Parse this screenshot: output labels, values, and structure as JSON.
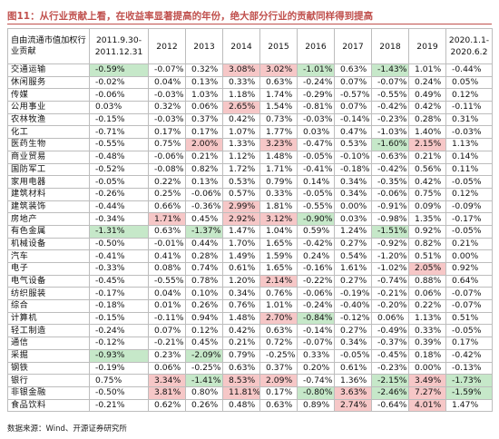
{
  "title": "图11：从行业贡献上看，在收益率显著提高的年份，绝大部分行业的贡献同样得到提高",
  "header": {
    "corner": "自由流通市值加权行业贡献",
    "columns": [
      "2011.9.30-\n2011.12.31",
      "2012",
      "2013",
      "2014",
      "2015",
      "2016",
      "2017",
      "2018",
      "2019",
      "2020.1.1-\n2020.6.2"
    ]
  },
  "colors": {
    "green": "#c6e8c9",
    "red": "#f6c7c7",
    "title": "#c0504d"
  },
  "rows": [
    {
      "name": "交通运输",
      "values": [
        "-0.59%",
        "-0.07%",
        "0.32%",
        "3.08%",
        "3.02%",
        "-1.01%",
        "0.63%",
        "-1.43%",
        "1.01%",
        "-0.44%"
      ],
      "hl": [
        "g",
        "",
        "",
        "r",
        "r",
        "g",
        "",
        "g",
        "",
        ""
      ]
    },
    {
      "name": "休闲服务",
      "values": [
        "-0.02%",
        "0.04%",
        "0.13%",
        "0.33%",
        "0.63%",
        "-0.24%",
        "0.07%",
        "-0.07%",
        "0.24%",
        "0.05%"
      ],
      "hl": [
        "",
        "",
        "",
        "",
        "",
        "",
        "",
        "",
        "",
        ""
      ]
    },
    {
      "name": "传媒",
      "values": [
        "-0.06%",
        "-0.03%",
        "1.03%",
        "1.18%",
        "1.74%",
        "-0.29%",
        "-0.57%",
        "-0.55%",
        "0.49%",
        "0.12%"
      ],
      "hl": [
        "",
        "",
        "",
        "",
        "",
        "",
        "",
        "",
        "",
        ""
      ]
    },
    {
      "name": "公用事业",
      "values": [
        "0.03%",
        "0.32%",
        "0.06%",
        "2.65%",
        "1.54%",
        "-0.81%",
        "0.07%",
        "-0.42%",
        "0.42%",
        "-0.11%"
      ],
      "hl": [
        "",
        "",
        "",
        "r",
        "",
        "",
        "",
        "",
        "",
        ""
      ]
    },
    {
      "name": "农林牧渔",
      "values": [
        "-0.15%",
        "-0.03%",
        "0.37%",
        "0.42%",
        "0.73%",
        "-0.03%",
        "-0.14%",
        "-0.23%",
        "0.28%",
        "0.31%"
      ],
      "hl": [
        "",
        "",
        "",
        "",
        "",
        "",
        "",
        "",
        "",
        ""
      ]
    },
    {
      "name": "化工",
      "values": [
        "-0.71%",
        "0.17%",
        "0.17%",
        "1.07%",
        "1.77%",
        "0.03%",
        "0.47%",
        "-1.03%",
        "1.40%",
        "-0.03%"
      ],
      "hl": [
        "",
        "",
        "",
        "",
        "",
        "",
        "",
        "",
        "",
        ""
      ]
    },
    {
      "name": "医药生物",
      "values": [
        "-0.55%",
        "0.75%",
        "2.00%",
        "1.33%",
        "3.23%",
        "-0.47%",
        "0.53%",
        "-1.60%",
        "2.15%",
        "1.13%"
      ],
      "hl": [
        "",
        "",
        "r",
        "",
        "r",
        "",
        "",
        "g",
        "r",
        ""
      ]
    },
    {
      "name": "商业贸易",
      "values": [
        "-0.48%",
        "-0.06%",
        "0.21%",
        "1.12%",
        "1.48%",
        "-0.05%",
        "-0.10%",
        "-0.63%",
        "0.21%",
        "0.14%"
      ],
      "hl": [
        "",
        "",
        "",
        "",
        "",
        "",
        "",
        "",
        "",
        ""
      ]
    },
    {
      "name": "国防军工",
      "values": [
        "-0.52%",
        "-0.08%",
        "0.82%",
        "1.72%",
        "1.71%",
        "-0.41%",
        "-0.18%",
        "-0.42%",
        "0.56%",
        "0.11%"
      ],
      "hl": [
        "",
        "",
        "",
        "",
        "",
        "",
        "",
        "",
        "",
        ""
      ]
    },
    {
      "name": "家用电器",
      "values": [
        "-0.05%",
        "0.22%",
        "0.13%",
        "0.53%",
        "0.79%",
        "0.14%",
        "0.34%",
        "-0.35%",
        "0.42%",
        "-0.05%"
      ],
      "hl": [
        "",
        "",
        "",
        "",
        "",
        "",
        "",
        "",
        "",
        ""
      ]
    },
    {
      "name": "建筑材料",
      "values": [
        "-0.26%",
        "0.25%",
        "-0.06%",
        "0.57%",
        "0.33%",
        "-0.05%",
        "0.34%",
        "-0.06%",
        "0.75%",
        "0.12%"
      ],
      "hl": [
        "",
        "",
        "",
        "",
        "",
        "",
        "",
        "",
        "",
        ""
      ]
    },
    {
      "name": "建筑装饰",
      "values": [
        "-0.44%",
        "0.66%",
        "-0.36%",
        "2.99%",
        "1.81%",
        "-0.55%",
        "0.00%",
        "-0.91%",
        "0.09%",
        "-0.09%"
      ],
      "hl": [
        "",
        "",
        "",
        "r",
        "",
        "",
        "",
        "",
        "",
        ""
      ]
    },
    {
      "name": "房地产",
      "values": [
        "-0.34%",
        "1.71%",
        "0.45%",
        "2.92%",
        "3.12%",
        "-0.90%",
        "0.03%",
        "-0.98%",
        "1.35%",
        "-0.17%"
      ],
      "hl": [
        "",
        "r",
        "",
        "r",
        "r",
        "g",
        "",
        "",
        "",
        ""
      ]
    },
    {
      "name": "有色金属",
      "values": [
        "-1.31%",
        "0.63%",
        "-1.37%",
        "1.47%",
        "1.04%",
        "0.59%",
        "1.24%",
        "-1.51%",
        "0.92%",
        "-0.05%"
      ],
      "hl": [
        "g",
        "",
        "g",
        "",
        "",
        "",
        "",
        "g",
        "",
        ""
      ]
    },
    {
      "name": "机械设备",
      "values": [
        "-0.50%",
        "-0.01%",
        "0.44%",
        "1.70%",
        "1.65%",
        "-0.42%",
        "0.27%",
        "-0.92%",
        "0.82%",
        "0.21%"
      ],
      "hl": [
        "",
        "",
        "",
        "",
        "",
        "",
        "",
        "",
        "",
        ""
      ]
    },
    {
      "name": "汽车",
      "values": [
        "-0.41%",
        "0.41%",
        "0.28%",
        "1.49%",
        "1.59%",
        "0.24%",
        "0.54%",
        "-1.20%",
        "0.51%",
        "0.00%"
      ],
      "hl": [
        "",
        "",
        "",
        "",
        "",
        "",
        "",
        "",
        "",
        ""
      ]
    },
    {
      "name": "电子",
      "values": [
        "-0.33%",
        "0.08%",
        "0.74%",
        "0.61%",
        "1.65%",
        "-0.16%",
        "1.61%",
        "-1.02%",
        "2.05%",
        "0.92%"
      ],
      "hl": [
        "",
        "",
        "",
        "",
        "",
        "",
        "",
        "",
        "r",
        ""
      ]
    },
    {
      "name": "电气设备",
      "values": [
        "-0.45%",
        "-0.55%",
        "0.78%",
        "1.20%",
        "2.14%",
        "-0.22%",
        "0.27%",
        "-0.74%",
        "0.88%",
        "0.64%"
      ],
      "hl": [
        "",
        "",
        "",
        "",
        "r",
        "",
        "",
        "",
        "",
        ""
      ]
    },
    {
      "name": "纺织服装",
      "values": [
        "-0.17%",
        "0.04%",
        "0.10%",
        "0.34%",
        "0.76%",
        "-0.06%",
        "-0.19%",
        "-0.21%",
        "0.06%",
        "-0.07%"
      ],
      "hl": [
        "",
        "",
        "",
        "",
        "",
        "",
        "",
        "",
        "",
        ""
      ]
    },
    {
      "name": "综合",
      "values": [
        "-0.18%",
        "0.01%",
        "0.26%",
        "0.76%",
        "1.01%",
        "-0.24%",
        "-0.40%",
        "-0.20%",
        "0.22%",
        "-0.07%"
      ],
      "hl": [
        "",
        "",
        "",
        "",
        "",
        "",
        "",
        "",
        "",
        ""
      ]
    },
    {
      "name": "计算机",
      "values": [
        "-0.15%",
        "-0.11%",
        "0.94%",
        "1.48%",
        "2.70%",
        "-0.84%",
        "-0.12%",
        "0.06%",
        "1.13%",
        "0.51%"
      ],
      "hl": [
        "",
        "",
        "",
        "",
        "r",
        "g",
        "",
        "",
        "",
        ""
      ]
    },
    {
      "name": "轻工制造",
      "values": [
        "-0.24%",
        "0.07%",
        "0.12%",
        "0.42%",
        "0.63%",
        "-0.14%",
        "0.27%",
        "-0.49%",
        "0.33%",
        "-0.05%"
      ],
      "hl": [
        "",
        "",
        "",
        "",
        "",
        "",
        "",
        "",
        "",
        ""
      ]
    },
    {
      "name": "通信",
      "values": [
        "-0.12%",
        "-0.21%",
        "0.45%",
        "0.21%",
        "0.72%",
        "-0.07%",
        "0.34%",
        "-0.37%",
        "0.39%",
        "0.17%"
      ],
      "hl": [
        "",
        "",
        "",
        "",
        "",
        "",
        "",
        "",
        "",
        ""
      ]
    },
    {
      "name": "采掘",
      "values": [
        "-0.93%",
        "0.23%",
        "-2.09%",
        "0.79%",
        "-0.25%",
        "0.33%",
        "-0.05%",
        "-0.45%",
        "0.18%",
        "-0.42%"
      ],
      "hl": [
        "g",
        "",
        "g",
        "",
        "",
        "",
        "",
        "",
        "",
        ""
      ]
    },
    {
      "name": "钢铁",
      "values": [
        "-0.19%",
        "0.06%",
        "-0.25%",
        "0.63%",
        "0.37%",
        "0.20%",
        "0.61%",
        "-0.23%",
        "0.00%",
        "-0.13%"
      ],
      "hl": [
        "",
        "",
        "",
        "",
        "",
        "",
        "",
        "",
        "",
        ""
      ]
    },
    {
      "name": "银行",
      "values": [
        "0.75%",
        "3.34%",
        "-1.41%",
        "8.53%",
        "2.09%",
        "-0.74%",
        "1.36%",
        "-2.15%",
        "3.49%",
        "-1.73%"
      ],
      "hl": [
        "",
        "r",
        "g",
        "r",
        "r",
        "",
        "",
        "g",
        "r",
        "g"
      ]
    },
    {
      "name": "非银金融",
      "values": [
        "-0.50%",
        "3.81%",
        "0.80%",
        "11.81%",
        "0.17%",
        "-0.80%",
        "3.63%",
        "-2.46%",
        "7.27%",
        "-1.59%"
      ],
      "hl": [
        "",
        "r",
        "",
        "r",
        "",
        "g",
        "r",
        "g",
        "r",
        "g"
      ]
    },
    {
      "name": "食品饮料",
      "values": [
        "-0.21%",
        "0.62%",
        "0.26%",
        "0.48%",
        "0.63%",
        "0.89%",
        "2.74%",
        "-0.64%",
        "4.01%",
        "1.47%"
      ],
      "hl": [
        "",
        "",
        "",
        "",
        "",
        "",
        "r",
        "",
        "r",
        ""
      ]
    }
  ],
  "source": "数据来源：Wind、开源证券研究所"
}
